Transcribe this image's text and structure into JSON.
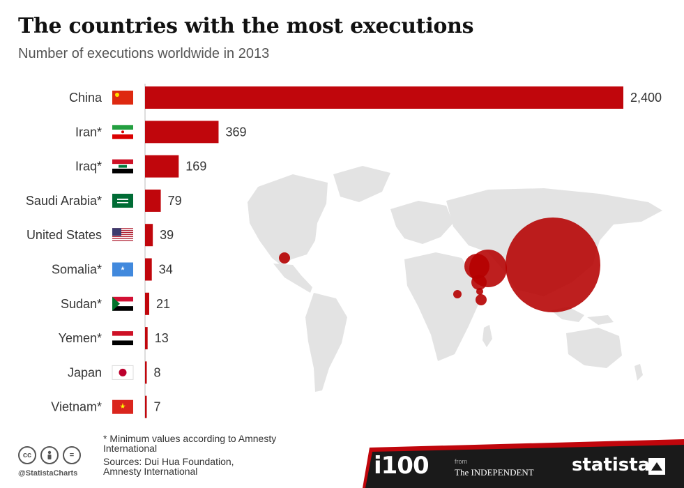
{
  "header": {
    "title": "The countries with the most executions",
    "subtitle": "Number of executions worldwide in 2013"
  },
  "chart_data": {
    "type": "bar",
    "orientation": "horizontal",
    "categories": [
      "China",
      "Iran*",
      "Iraq*",
      "Saudi Arabia*",
      "United States",
      "Somalia*",
      "Sudan*",
      "Yemen*",
      "Japan",
      "Vietnam*"
    ],
    "values": [
      2400,
      369,
      169,
      79,
      39,
      34,
      21,
      13,
      8,
      7
    ],
    "value_labels": [
      "2,400",
      "369",
      "169",
      "79",
      "39",
      "34",
      "21",
      "13",
      "8",
      "7"
    ],
    "xlim": [
      0,
      2400
    ],
    "grid": false,
    "legend": "none",
    "bar_color": "#c0060c",
    "flags": [
      "china-flag-icon",
      "iran-flag-icon",
      "iraq-flag-icon",
      "saudi-arabia-flag-icon",
      "united-states-flag-icon",
      "somalia-flag-icon",
      "sudan-flag-icon",
      "yemen-flag-icon",
      "japan-flag-icon",
      "vietnam-flag-icon"
    ]
  },
  "footnotes": {
    "note_line1": "* Minimum values according to Amnesty",
    "note_line2": "International",
    "source_line1": "Sources: Dui Hua Foundation,",
    "source_line2": "Amnesty International"
  },
  "footer": {
    "cc_icons": [
      "cc",
      "person",
      "="
    ],
    "handle": "@StatistaCharts",
    "brand_i100": "i100",
    "from": "from",
    "brand_independent": "The INDEPENDENT",
    "brand_statista": "statista"
  },
  "colors": {
    "accent": "#c0060c",
    "map_land": "#e3e3e3",
    "footer_dark": "#1a1a1a"
  }
}
